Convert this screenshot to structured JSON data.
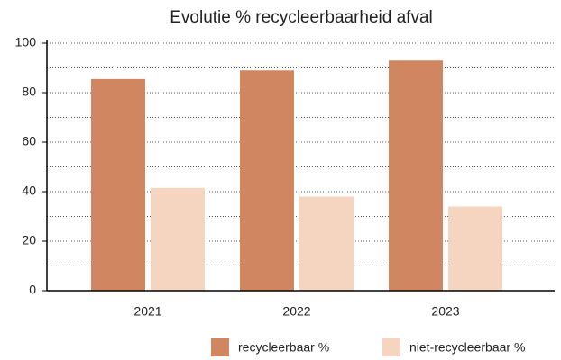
{
  "chart_data": {
    "type": "bar",
    "title": "Evolutie % recycleerbaarheid afval",
    "categories": [
      "2021",
      "2022",
      "2023"
    ],
    "series": [
      {
        "name": "recycleerbaar %",
        "color": "#d08660",
        "values": [
          85.5,
          89,
          93
        ]
      },
      {
        "name": "niet-recycleerbaar %",
        "color": "#f5d5c0",
        "values": [
          41.5,
          38,
          34
        ]
      }
    ],
    "ylim": [
      0,
      100
    ],
    "yticks": [
      0,
      20,
      40,
      60,
      80,
      100
    ],
    "yminorticks": [
      10,
      30,
      50,
      70,
      90
    ],
    "grid": true,
    "legend": "bottom"
  }
}
